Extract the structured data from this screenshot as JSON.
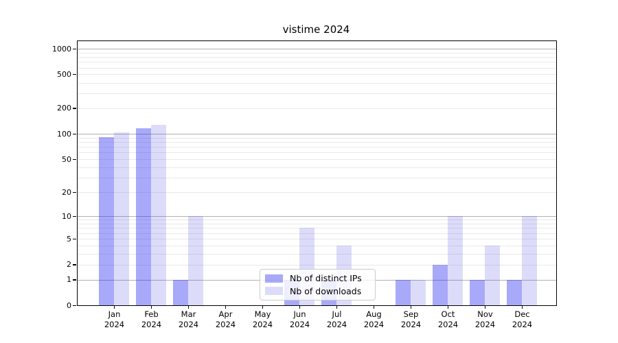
{
  "title": "vistime 2024",
  "chart_data": {
    "type": "bar",
    "title": "vistime 2024",
    "categories": [
      "Jan 2024",
      "Feb 2024",
      "Mar 2024",
      "Apr 2024",
      "May 2024",
      "Jun 2024",
      "Jul 2024",
      "Aug 2024",
      "Sep 2024",
      "Oct 2024",
      "Nov 2024",
      "Dec 2024"
    ],
    "month_labels": [
      "Jan",
      "Feb",
      "Mar",
      "Apr",
      "May",
      "Jun",
      "Jul",
      "Aug",
      "Sep",
      "Oct",
      "Nov",
      "Dec"
    ],
    "year": "2024",
    "series": [
      {
        "name": "Nb of distinct IPs",
        "color": "rgba(40,40,240,0.40)",
        "values": [
          92,
          116,
          1,
          0,
          0,
          1,
          1,
          0,
          1,
          2,
          1,
          1
        ]
      },
      {
        "name": "Nb of downloads",
        "color": "rgba(80,80,230,0.20)",
        "values": [
          105,
          127,
          10,
          0,
          0,
          7,
          4,
          0,
          1,
          10,
          4,
          10
        ]
      }
    ],
    "xlabel": "",
    "ylabel": "",
    "yscale": "log1p",
    "yticks": [
      0,
      1,
      2,
      5,
      10,
      20,
      50,
      100,
      200,
      500,
      1000
    ],
    "ylim": [
      0,
      1225
    ],
    "grid_major": [
      1,
      10,
      100,
      1000
    ],
    "grid": "horizontal major + minor",
    "legend_position": "inside plot, lower center"
  },
  "colors": {
    "bar_distinct_ips_on_white": "#a9a9f9",
    "bar_downloads_on_white": "#dcdcfa",
    "grid_major": "#b0b0b0",
    "grid_minor": "#e9e9e9",
    "axis": "#000000",
    "legend_border": "#cccccc",
    "background": "#ffffff"
  }
}
